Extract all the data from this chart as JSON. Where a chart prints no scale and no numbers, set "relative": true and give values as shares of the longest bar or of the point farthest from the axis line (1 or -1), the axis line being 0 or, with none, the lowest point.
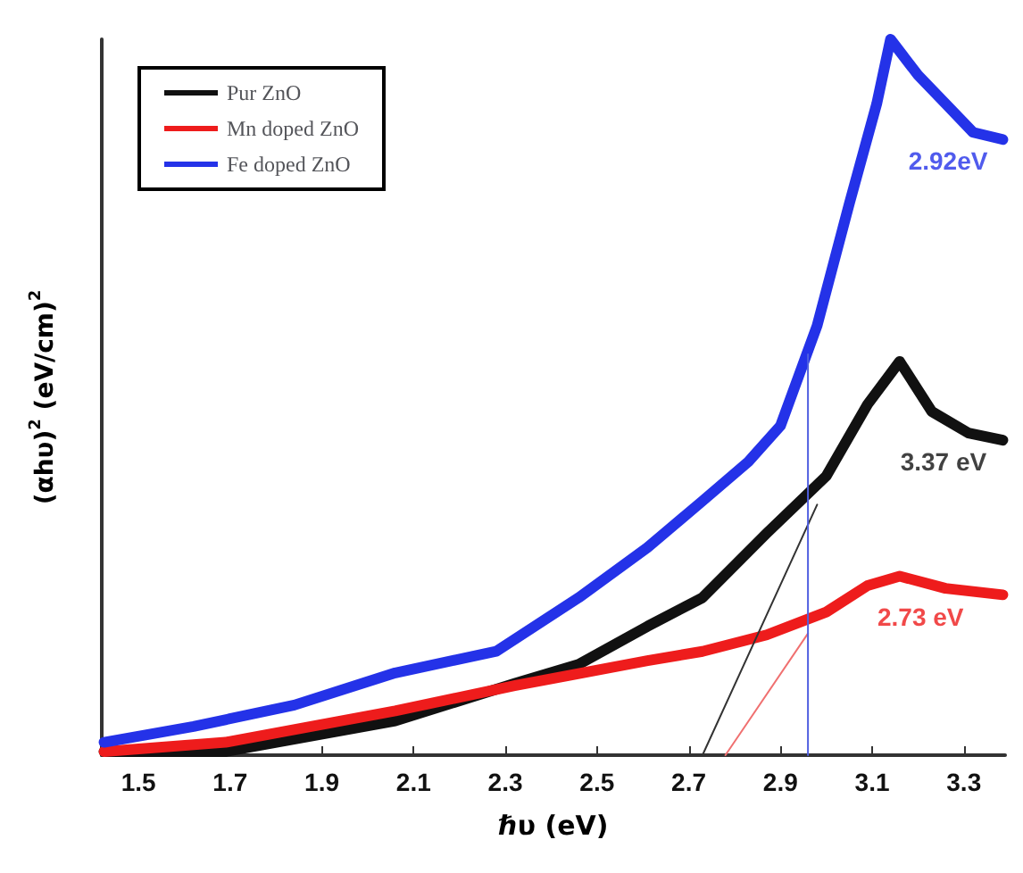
{
  "chart_data": {
    "type": "line",
    "xlabel": "ℏυ (eV)",
    "ylabel": "(αhυ)$^{2}$ (eV/cm)$^{2}$",
    "relative": true,
    "xlim": [
      1.42,
      3.39
    ],
    "xticks": [
      1.5,
      1.7,
      1.9,
      2.1,
      2.3,
      2.5,
      2.7,
      2.9,
      3.1,
      3.3
    ],
    "legend": "top left",
    "grid": false,
    "marker": "none",
    "line_style": "solid",
    "x": [
      1.425,
      1.62,
      1.84,
      2.06,
      2.28,
      2.46,
      2.61,
      2.73,
      2.83,
      2.9,
      2.98,
      3.05,
      3.11,
      3.14,
      3.2,
      3.26,
      3.32,
      3.385
    ],
    "series": [
      {
        "name": "Pur ZnO",
        "color": "#111111",
        "x": [
          1.425,
          1.69,
          2.06,
          2.32,
          2.46,
          2.61,
          2.73,
          2.87,
          3.0,
          3.09,
          3.16,
          3.23,
          3.31,
          3.385
        ],
        "values": [
          0.005,
          0.005,
          0.048,
          0.1,
          0.127,
          0.18,
          0.22,
          0.31,
          0.39,
          0.49,
          0.55,
          0.48,
          0.45,
          0.44
        ]
      },
      {
        "name": "Mn doped ZnO",
        "color": "#ee1c1c",
        "x": [
          1.425,
          1.69,
          2.06,
          2.32,
          2.61,
          2.73,
          2.87,
          3.0,
          3.09,
          3.16,
          3.26,
          3.385
        ],
        "values": [
          0.005,
          0.018,
          0.062,
          0.097,
          0.132,
          0.145,
          0.168,
          0.2,
          0.237,
          0.25,
          0.233,
          0.224
        ]
      },
      {
        "name": "Fe doped ZnO",
        "color": "#2432e8",
        "values": [
          0.018,
          0.04,
          0.07,
          0.115,
          0.145,
          0.22,
          0.29,
          0.355,
          0.41,
          0.46,
          0.6,
          0.77,
          0.91,
          1.0,
          0.95,
          0.91,
          0.87,
          0.86
        ]
      },
      {
        "type": "line",
        "color": "#333333",
        "x": [
          2.73,
          2.98
        ],
        "values": [
          0,
          0.35
        ]
      },
      {
        "type": "line",
        "color": "#f07070",
        "x": [
          2.78,
          2.96
        ],
        "values": [
          0,
          0.17
        ]
      },
      {
        "type": "line",
        "color": "#5060e0",
        "x": [
          2.96,
          2.96
        ],
        "values": [
          0,
          0.56
        ]
      }
    ],
    "annotations": [
      {
        "text": "3.37 eV",
        "x": 3.31,
        "y": 0.45
      },
      {
        "text": "2.73 eV",
        "x": 3.26,
        "y": 0.233
      },
      {
        "text": "2.92eV",
        "x": 3.32,
        "y": 0.87
      }
    ]
  }
}
